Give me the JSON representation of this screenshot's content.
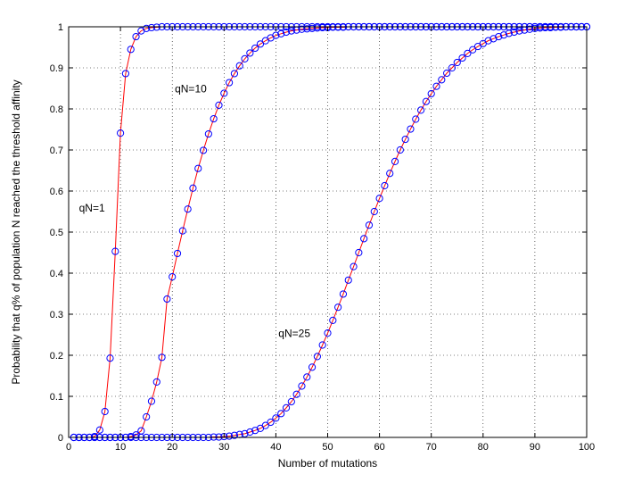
{
  "chart_data": {
    "type": "line",
    "title": "",
    "xlabel": "Number of mutations",
    "ylabel": "Probability that q% of population N reached the threshold affinity",
    "xlim": [
      0,
      100
    ],
    "ylim": [
      0,
      1
    ],
    "xticks": [
      0,
      10,
      20,
      30,
      40,
      50,
      60,
      70,
      80,
      90,
      100
    ],
    "yticks": [
      0,
      0.1,
      0.2,
      0.3,
      0.4,
      0.5,
      0.6,
      0.7,
      0.8,
      0.9,
      1
    ],
    "grid": true,
    "line_color": "#ff0000",
    "marker_color": "#0000ff",
    "series": [
      {
        "label": "qN=1",
        "label_at": [
          2,
          0.55
        ],
        "points": [
          [
            1,
            0
          ],
          [
            2,
            0
          ],
          [
            3,
            0
          ],
          [
            4,
            0
          ],
          [
            5,
            0.002
          ],
          [
            6,
            0.018
          ],
          [
            7,
            0.063
          ],
          [
            8,
            0.193
          ],
          [
            9,
            0.453
          ],
          [
            10,
            0.741
          ],
          [
            11,
            0.886
          ],
          [
            12,
            0.945
          ],
          [
            13,
            0.976
          ],
          [
            14,
            0.99
          ],
          [
            15,
            0.996
          ],
          [
            16,
            0.998
          ],
          [
            17,
            0.999
          ],
          [
            18,
            1
          ],
          [
            19,
            1
          ],
          [
            20,
            1
          ],
          [
            21,
            1
          ],
          [
            22,
            1
          ],
          [
            23,
            1
          ],
          [
            24,
            1
          ],
          [
            25,
            1
          ],
          [
            26,
            1
          ],
          [
            27,
            1
          ],
          [
            28,
            1
          ],
          [
            29,
            1
          ],
          [
            30,
            1
          ],
          [
            31,
            1
          ],
          [
            32,
            1
          ],
          [
            33,
            1
          ],
          [
            34,
            1
          ],
          [
            35,
            1
          ],
          [
            36,
            1
          ],
          [
            37,
            1
          ],
          [
            38,
            1
          ],
          [
            39,
            1
          ],
          [
            40,
            1
          ],
          [
            41,
            1
          ],
          [
            42,
            1
          ],
          [
            43,
            1
          ],
          [
            44,
            1
          ],
          [
            45,
            1
          ],
          [
            46,
            1
          ],
          [
            47,
            1
          ],
          [
            48,
            1
          ],
          [
            49,
            1
          ],
          [
            50,
            1
          ],
          [
            51,
            1
          ],
          [
            52,
            1
          ],
          [
            53,
            1
          ],
          [
            54,
            1
          ],
          [
            55,
            1
          ],
          [
            56,
            1
          ],
          [
            57,
            1
          ],
          [
            58,
            1
          ],
          [
            59,
            1
          ],
          [
            60,
            1
          ],
          [
            61,
            1
          ],
          [
            62,
            1
          ],
          [
            63,
            1
          ],
          [
            64,
            1
          ],
          [
            65,
            1
          ],
          [
            66,
            1
          ],
          [
            67,
            1
          ],
          [
            68,
            1
          ],
          [
            69,
            1
          ],
          [
            70,
            1
          ],
          [
            71,
            1
          ],
          [
            72,
            1
          ],
          [
            73,
            1
          ],
          [
            74,
            1
          ],
          [
            75,
            1
          ],
          [
            76,
            1
          ],
          [
            77,
            1
          ],
          [
            78,
            1
          ],
          [
            79,
            1
          ],
          [
            80,
            1
          ],
          [
            81,
            1
          ],
          [
            82,
            1
          ],
          [
            83,
            1
          ],
          [
            84,
            1
          ],
          [
            85,
            1
          ],
          [
            86,
            1
          ],
          [
            87,
            1
          ],
          [
            88,
            1
          ],
          [
            89,
            1
          ],
          [
            90,
            1
          ],
          [
            91,
            1
          ],
          [
            92,
            1
          ],
          [
            93,
            1
          ],
          [
            94,
            1
          ],
          [
            95,
            1
          ],
          [
            96,
            1
          ],
          [
            97,
            1
          ],
          [
            98,
            1
          ],
          [
            99,
            1
          ],
          [
            100,
            1
          ]
        ]
      },
      {
        "label": "qN=10",
        "label_at": [
          20.5,
          0.84
        ],
        "points": [
          [
            1,
            0
          ],
          [
            2,
            0
          ],
          [
            3,
            0
          ],
          [
            4,
            0
          ],
          [
            5,
            0
          ],
          [
            6,
            0
          ],
          [
            7,
            0
          ],
          [
            8,
            0
          ],
          [
            9,
            0
          ],
          [
            10,
            0
          ],
          [
            11,
            0
          ],
          [
            12,
            0.002
          ],
          [
            13,
            0.006
          ],
          [
            14,
            0.016
          ],
          [
            15,
            0.05
          ],
          [
            16,
            0.088
          ],
          [
            17,
            0.135
          ],
          [
            18,
            0.195
          ],
          [
            19,
            0.337
          ],
          [
            20,
            0.391
          ],
          [
            21,
            0.448
          ],
          [
            22,
            0.503
          ],
          [
            23,
            0.556
          ],
          [
            24,
            0.607
          ],
          [
            25,
            0.655
          ],
          [
            26,
            0.699
          ],
          [
            27,
            0.739
          ],
          [
            28,
            0.776
          ],
          [
            29,
            0.809
          ],
          [
            30,
            0.838
          ],
          [
            31,
            0.864
          ],
          [
            32,
            0.886
          ],
          [
            33,
            0.905
          ],
          [
            34,
            0.922
          ],
          [
            35,
            0.936
          ],
          [
            36,
            0.948
          ],
          [
            37,
            0.958
          ],
          [
            38,
            0.966
          ],
          [
            39,
            0.973
          ],
          [
            40,
            0.979
          ],
          [
            41,
            0.983
          ],
          [
            42,
            0.987
          ],
          [
            43,
            0.99
          ],
          [
            44,
            0.992
          ],
          [
            45,
            0.994
          ],
          [
            46,
            0.995
          ],
          [
            47,
            0.996
          ],
          [
            48,
            0.997
          ],
          [
            49,
            0.998
          ],
          [
            50,
            0.998
          ],
          [
            51,
            0.999
          ],
          [
            52,
            0.999
          ],
          [
            53,
            0.999
          ],
          [
            54,
            1
          ],
          [
            55,
            1
          ],
          [
            56,
            1
          ],
          [
            57,
            1
          ],
          [
            58,
            1
          ],
          [
            59,
            1
          ],
          [
            60,
            1
          ],
          [
            61,
            1
          ],
          [
            62,
            1
          ],
          [
            63,
            1
          ],
          [
            64,
            1
          ],
          [
            65,
            1
          ],
          [
            66,
            1
          ],
          [
            67,
            1
          ],
          [
            68,
            1
          ],
          [
            69,
            1
          ],
          [
            70,
            1
          ],
          [
            71,
            1
          ],
          [
            72,
            1
          ],
          [
            73,
            1
          ],
          [
            74,
            1
          ],
          [
            75,
            1
          ],
          [
            76,
            1
          ],
          [
            77,
            1
          ],
          [
            78,
            1
          ],
          [
            79,
            1
          ],
          [
            80,
            1
          ],
          [
            81,
            1
          ],
          [
            82,
            1
          ],
          [
            83,
            1
          ],
          [
            84,
            1
          ],
          [
            85,
            1
          ],
          [
            86,
            1
          ],
          [
            87,
            1
          ],
          [
            88,
            1
          ],
          [
            89,
            1
          ],
          [
            90,
            1
          ],
          [
            91,
            1
          ],
          [
            92,
            1
          ],
          [
            93,
            1
          ],
          [
            94,
            1
          ],
          [
            95,
            1
          ],
          [
            96,
            1
          ],
          [
            97,
            1
          ],
          [
            98,
            1
          ],
          [
            99,
            1
          ],
          [
            100,
            1
          ]
        ]
      },
      {
        "label": "qN=25",
        "label_at": [
          40.5,
          0.245
        ],
        "points": [
          [
            1,
            0
          ],
          [
            2,
            0
          ],
          [
            3,
            0
          ],
          [
            4,
            0
          ],
          [
            5,
            0
          ],
          [
            6,
            0
          ],
          [
            7,
            0
          ],
          [
            8,
            0
          ],
          [
            9,
            0
          ],
          [
            10,
            0
          ],
          [
            11,
            0
          ],
          [
            12,
            0
          ],
          [
            13,
            0
          ],
          [
            14,
            0
          ],
          [
            15,
            0
          ],
          [
            16,
            0
          ],
          [
            17,
            0
          ],
          [
            18,
            0
          ],
          [
            19,
            0
          ],
          [
            20,
            0
          ],
          [
            21,
            0
          ],
          [
            22,
            0
          ],
          [
            23,
            0
          ],
          [
            24,
            0
          ],
          [
            25,
            0
          ],
          [
            26,
            0
          ],
          [
            27,
            0
          ],
          [
            28,
            0.001
          ],
          [
            29,
            0.001
          ],
          [
            30,
            0.002
          ],
          [
            31,
            0.003
          ],
          [
            32,
            0.005
          ],
          [
            33,
            0.007
          ],
          [
            34,
            0.009
          ],
          [
            35,
            0.013
          ],
          [
            36,
            0.017
          ],
          [
            37,
            0.022
          ],
          [
            38,
            0.029
          ],
          [
            39,
            0.037
          ],
          [
            40,
            0.047
          ],
          [
            41,
            0.058
          ],
          [
            42,
            0.072
          ],
          [
            43,
            0.087
          ],
          [
            44,
            0.105
          ],
          [
            45,
            0.125
          ],
          [
            46,
            0.147
          ],
          [
            47,
            0.171
          ],
          [
            48,
            0.197
          ],
          [
            49,
            0.225
          ],
          [
            50,
            0.254
          ],
          [
            51,
            0.285
          ],
          [
            52,
            0.317
          ],
          [
            53,
            0.349
          ],
          [
            54,
            0.383
          ],
          [
            55,
            0.416
          ],
          [
            56,
            0.45
          ],
          [
            57,
            0.484
          ],
          [
            58,
            0.517
          ],
          [
            59,
            0.55
          ],
          [
            60,
            0.582
          ],
          [
            61,
            0.613
          ],
          [
            62,
            0.643
          ],
          [
            63,
            0.672
          ],
          [
            64,
            0.7
          ],
          [
            65,
            0.726
          ],
          [
            66,
            0.751
          ],
          [
            67,
            0.775
          ],
          [
            68,
            0.797
          ],
          [
            69,
            0.818
          ],
          [
            70,
            0.837
          ],
          [
            71,
            0.855
          ],
          [
            72,
            0.871
          ],
          [
            73,
            0.887
          ],
          [
            74,
            0.9
          ],
          [
            75,
            0.913
          ],
          [
            76,
            0.924
          ],
          [
            77,
            0.935
          ],
          [
            78,
            0.944
          ],
          [
            79,
            0.952
          ],
          [
            80,
            0.959
          ],
          [
            81,
            0.966
          ],
          [
            82,
            0.971
          ],
          [
            83,
            0.976
          ],
          [
            84,
            0.98
          ],
          [
            85,
            0.984
          ],
          [
            86,
            0.987
          ],
          [
            87,
            0.99
          ],
          [
            88,
            0.992
          ],
          [
            89,
            0.994
          ],
          [
            90,
            0.996
          ],
          [
            91,
            0.997
          ],
          [
            92,
            0.998
          ],
          [
            93,
            0.998
          ],
          [
            94,
            0.999
          ],
          [
            95,
            0.999
          ],
          [
            96,
            1
          ],
          [
            97,
            1
          ],
          [
            98,
            1
          ],
          [
            99,
            1
          ],
          [
            100,
            1
          ]
        ]
      }
    ]
  }
}
